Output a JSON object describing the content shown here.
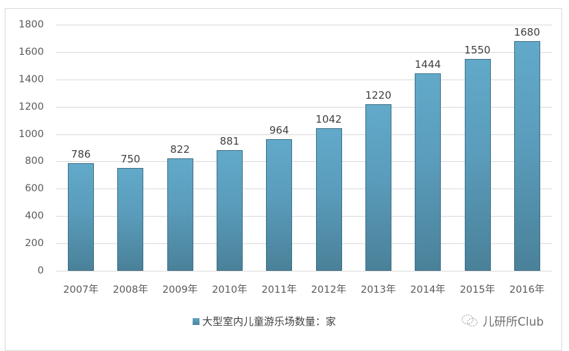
{
  "chart_data": {
    "type": "bar",
    "title": "",
    "xlabel": "",
    "ylabel": "",
    "categories": [
      "2007年",
      "2008年",
      "2009年",
      "2010年",
      "2011年",
      "2012年",
      "2013年",
      "2014年",
      "2015年",
      "2016年"
    ],
    "series": [
      {
        "name": "大型室内儿童游乐场数量：家",
        "values": [
          786,
          750,
          822,
          881,
          964,
          1042,
          1220,
          1444,
          1550,
          1680
        ],
        "color": "#5a9cbb"
      }
    ],
    "ylim": [
      0,
      1800
    ],
    "yticks": [
      0,
      200,
      400,
      600,
      800,
      1000,
      1200,
      1400,
      1600,
      1800
    ],
    "grid": true,
    "data_labels": true,
    "legend_position": "bottom"
  },
  "legend": {
    "label": "大型室内儿童游乐场数量：家"
  },
  "watermark": {
    "text": "儿研所Club",
    "icon": "wechat-icon"
  }
}
